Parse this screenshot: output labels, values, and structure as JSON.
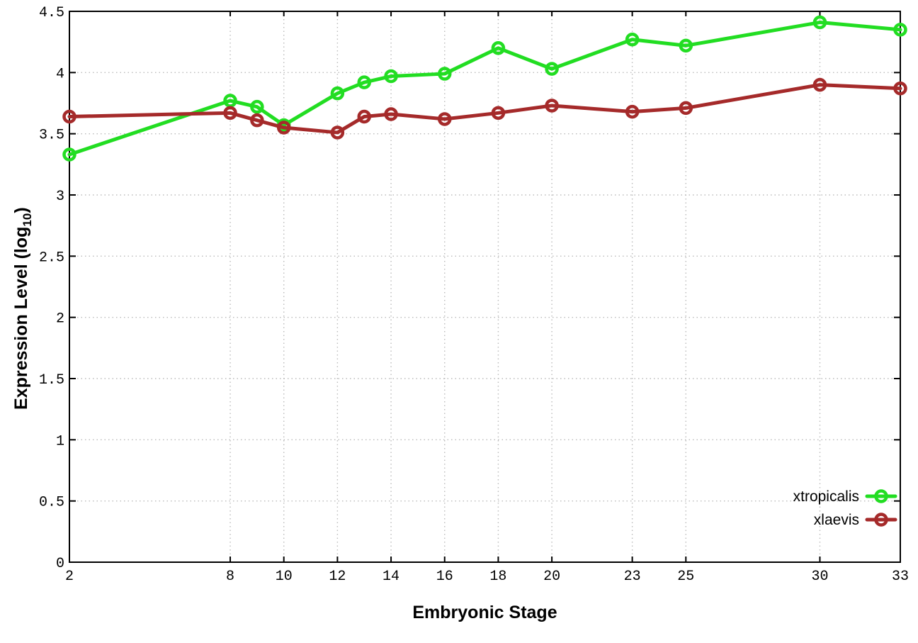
{
  "figure": {
    "background": "#ffffff"
  },
  "chart_data": {
    "type": "line",
    "title": "",
    "xlabel": "Embryonic Stage",
    "ylabel": "Expression Level (log10)",
    "ylabel_parts": {
      "prefix": "Expression Level (log",
      "sub": "10",
      "suffix": ")"
    },
    "x": [
      2,
      8,
      9,
      10,
      12,
      13,
      14,
      16,
      18,
      20,
      23,
      25,
      30,
      33
    ],
    "series": [
      {
        "name": "xtropicalis",
        "color": "#22dd22",
        "values": [
          3.33,
          3.77,
          3.72,
          3.57,
          3.83,
          3.92,
          3.97,
          3.99,
          4.2,
          4.03,
          4.27,
          4.22,
          4.41,
          4.35
        ]
      },
      {
        "name": "xlaevis",
        "color": "#a52a2a",
        "values": [
          3.64,
          3.67,
          3.61,
          3.55,
          3.51,
          3.64,
          3.66,
          3.62,
          3.67,
          3.73,
          3.68,
          3.71,
          3.9,
          3.87
        ]
      }
    ],
    "xticks": [
      2,
      8,
      10,
      12,
      14,
      16,
      18,
      20,
      23,
      25,
      30,
      33
    ],
    "yticks": [
      0,
      0.5,
      1,
      1.5,
      2,
      2.5,
      3,
      3.5,
      4,
      4.5
    ],
    "xlim": [
      2,
      33
    ],
    "ylim": [
      0,
      4.5
    ],
    "grid": true,
    "legend_position": "bottom-right",
    "marker": "open-circle",
    "colors": {
      "axis": "#000000",
      "grid": "#bbbbbb",
      "text": "#000000"
    }
  }
}
